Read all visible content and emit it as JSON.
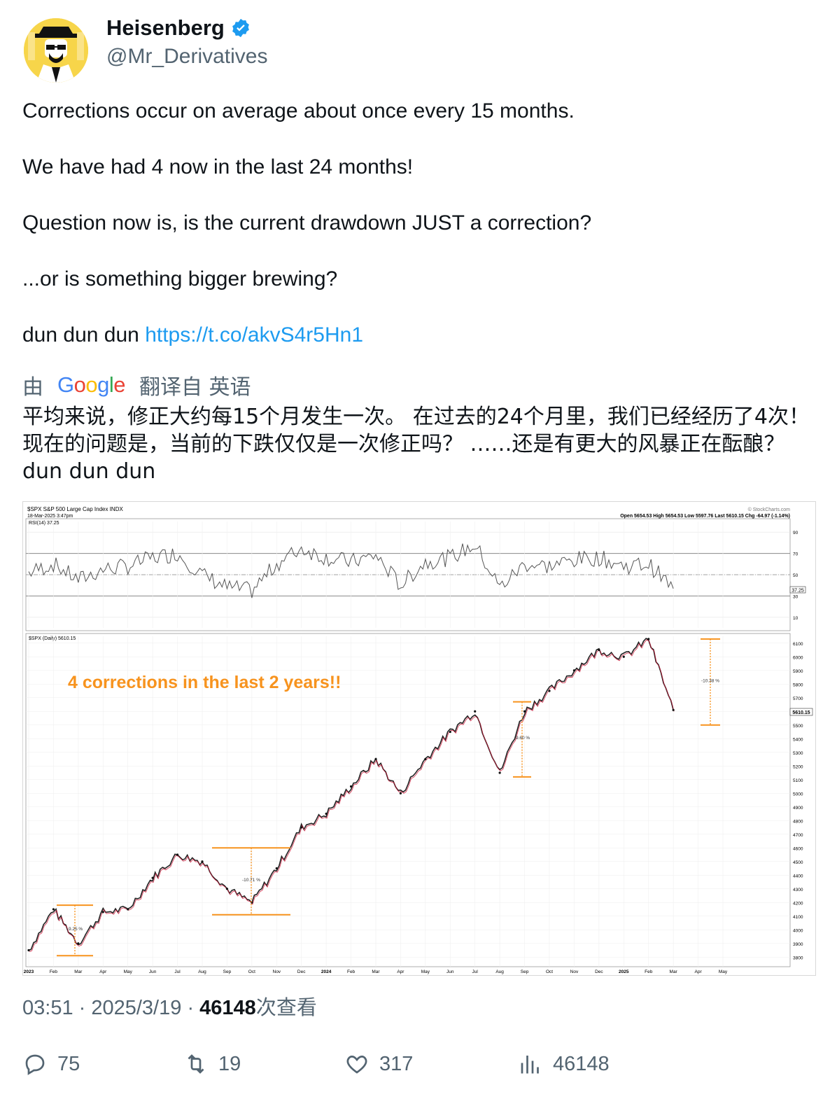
{
  "author": {
    "display_name": "Heisenberg",
    "handle": "@Mr_Derivatives",
    "verified": true,
    "avatar_icon": "heisenberg-avatar-icon"
  },
  "post": {
    "lines": [
      "Corrections occur on average about once every 15 months.",
      "We have had 4 now in the last 24 months!",
      "Question now is, is the current drawdown JUST a correction?",
      "...or is something bigger brewing?"
    ],
    "last_line_text": "dun dun dun",
    "link": "https://t.co/akvS4r5Hn1"
  },
  "translation": {
    "prefix": "由",
    "provider": "Google",
    "suffix": "翻译自 英语",
    "text": "平均来说，修正大约每15个月发生一次。 在过去的24个月里，我们已经经历了4次！ 现在的问题是，当前的下跌仅仅是一次修正吗？ ……还是有更大的风暴正在酝酿？ dun dun dun"
  },
  "chart": {
    "header_left": "$SPX S&P 500 Large Cap Index INDX",
    "header_date": "18-Mar-2025 3:47pm",
    "watermark": "© StockCharts.com",
    "ohlc": "Open 5654.53  High 5654.53  Low 5597.76  Last 5610.15  Chg -64.97 (-1.14%)",
    "rsi_label": "RSI(14) 37.25",
    "rsi_value_tag": "37.25",
    "price_label": "$SPX (Daily) 5610.15",
    "price_tag": "5610.15",
    "annotation": "4 corrections in the last 2 years!!",
    "corrections": [
      "-9.25 %",
      "-10.71 %",
      "-9.60 %",
      "-10.38 %"
    ]
  },
  "chart_data": {
    "type": "line",
    "title": "$SPX S&P 500 Large Cap Index INDX",
    "series": [
      {
        "name": "$SPX (Daily)",
        "x": [
          "2023-01",
          "2023-02",
          "2023-03",
          "2023-04",
          "2023-05",
          "2023-06",
          "2023-07",
          "2023-08",
          "2023-09",
          "2023-10",
          "2023-11",
          "2023-12",
          "2024-01",
          "2024-02",
          "2024-03",
          "2024-04",
          "2024-05",
          "2024-06",
          "2024-07",
          "2024-08",
          "2024-09",
          "2024-10",
          "2024-11",
          "2024-12",
          "2025-01",
          "2025-02",
          "2025-03"
        ],
        "values": [
          3850,
          4150,
          3900,
          4130,
          4150,
          4380,
          4550,
          4500,
          4300,
          4200,
          4450,
          4750,
          4850,
          5050,
          5250,
          5000,
          5250,
          5450,
          5600,
          5150,
          5600,
          5750,
          5900,
          6050,
          6000,
          6130,
          5610
        ]
      },
      {
        "name": "RSI(14)",
        "values": [
          52,
          60,
          45,
          55,
          58,
          66,
          70,
          50,
          38,
          35,
          60,
          75,
          66,
          62,
          68,
          40,
          62,
          66,
          78,
          38,
          60,
          58,
          64,
          66,
          58,
          60,
          37
        ]
      }
    ],
    "rsi_ticks": [
      90,
      70,
      50,
      30,
      10
    ],
    "price_ticks": [
      6100,
      6000,
      5900,
      5800,
      5700,
      5600,
      5500,
      5400,
      5300,
      5200,
      5100,
      5000,
      4900,
      4800,
      4700,
      4600,
      4500,
      4400,
      4300,
      4200,
      4100,
      4000,
      3900,
      3800
    ],
    "x_labels": [
      "2023",
      "Feb",
      "Mar",
      "Apr",
      "May",
      "Jun",
      "Jul",
      "Aug",
      "Sep",
      "Oct",
      "Nov",
      "Dec",
      "2024",
      "Feb",
      "Mar",
      "Apr",
      "May",
      "Jun",
      "Jul",
      "Aug",
      "Sep",
      "Oct",
      "Nov",
      "Dec",
      "2025",
      "Feb",
      "Mar",
      "Apr",
      "May"
    ],
    "ylim": [
      3750,
      6150
    ]
  },
  "meta": {
    "time": "03:51",
    "date": "2025/3/19",
    "views_number": "46148",
    "views_suffix": "次查看"
  },
  "actions": {
    "replies": "75",
    "reposts": "19",
    "likes": "317",
    "views": "46148"
  },
  "colors": {
    "link": "#1d9bf0",
    "muted": "#536471",
    "orange": "#f7931e",
    "verified": "#1d9bf0"
  }
}
